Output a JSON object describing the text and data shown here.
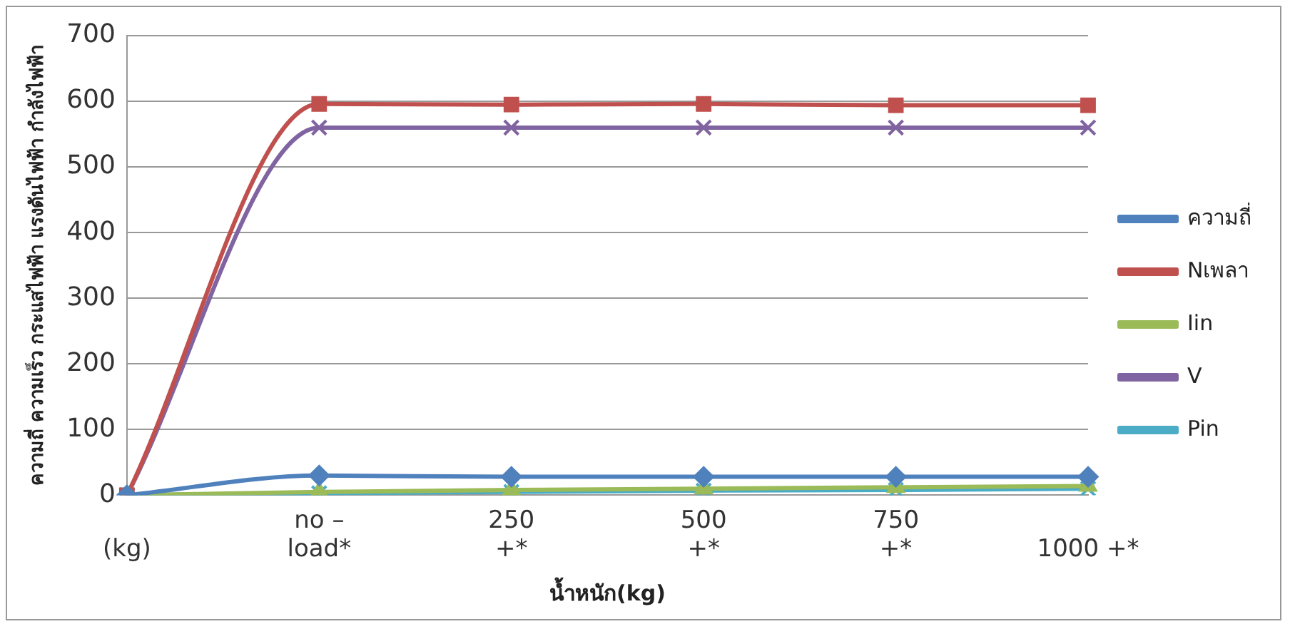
{
  "chart_data": {
    "type": "line",
    "xlabel": "น้ำหนัก(kg)",
    "ylabel": "ความถี่ ความเร็ว กระแสไฟฟ้า แรงดันไฟฟ้า กำลังไฟฟ้า",
    "categories": [
      "(kg)",
      "no –\nload*",
      "250\n+*",
      "500\n+*",
      "750\n+*",
      "1000 +*"
    ],
    "series": [
      {
        "name": "ความถี่",
        "color": "#4f81bd",
        "marker": "diamond",
        "values": [
          0,
          30,
          28,
          28,
          28,
          28
        ]
      },
      {
        "name": "Nเพลา",
        "color": "#c0504d",
        "marker": "square",
        "values": [
          0,
          596,
          595,
          596,
          594,
          594
        ]
      },
      {
        "name": "Iin",
        "color": "#9bbb59",
        "marker": "triangle",
        "values": [
          0,
          5,
          8,
          10,
          12,
          14
        ]
      },
      {
        "name": "V",
        "color": "#8064a2",
        "marker": "cross",
        "values": [
          0,
          560,
          560,
          560,
          560,
          560
        ]
      },
      {
        "name": "Pin",
        "color": "#4bacc6",
        "marker": "cross",
        "values": [
          0,
          3,
          5,
          7,
          8,
          10
        ]
      }
    ],
    "ylim": [
      0,
      700
    ],
    "yticks": [
      0,
      100,
      200,
      300,
      400,
      500,
      600,
      700
    ],
    "grid": "y",
    "legend": "right"
  }
}
